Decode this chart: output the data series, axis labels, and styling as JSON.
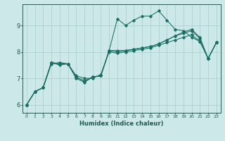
{
  "xlabel": "Humidex (Indice chaleur)",
  "bg_color": "#cce8e8",
  "grid_color": "#a8cccc",
  "line_color": "#1a6e64",
  "xlim": [
    -0.5,
    23.5
  ],
  "ylim": [
    5.7,
    9.8
  ],
  "yticks": [
    6,
    7,
    8,
    9
  ],
  "xticks": [
    0,
    1,
    2,
    3,
    4,
    5,
    6,
    7,
    8,
    9,
    10,
    11,
    12,
    13,
    14,
    15,
    16,
    17,
    18,
    19,
    20,
    21,
    22,
    23
  ],
  "series": [
    {
      "x": [
        0,
        1,
        2,
        3,
        4,
        5,
        6,
        7,
        8,
        9,
        10,
        11,
        12,
        13,
        14,
        15,
        16,
        17,
        18,
        19,
        20,
        21,
        22,
        23
      ],
      "y": [
        6.0,
        6.5,
        6.65,
        7.6,
        7.5,
        7.55,
        7.0,
        6.85,
        7.05,
        7.1,
        8.05,
        9.25,
        9.0,
        9.2,
        9.35,
        9.35,
        9.55,
        9.2,
        8.85,
        8.8,
        8.55,
        8.4,
        7.75,
        8.35
      ]
    },
    {
      "x": [
        0,
        1,
        2,
        3,
        4,
        5,
        6,
        7,
        8,
        9,
        10,
        11,
        12,
        13,
        14,
        15,
        16,
        17,
        18,
        19,
        20,
        21,
        22,
        23
      ],
      "y": [
        6.0,
        6.5,
        6.65,
        7.55,
        7.6,
        7.55,
        7.1,
        7.0,
        7.0,
        7.15,
        8.0,
        7.95,
        8.0,
        8.05,
        8.1,
        8.15,
        8.25,
        8.35,
        8.45,
        8.55,
        8.65,
        8.4,
        7.75,
        8.35
      ]
    },
    {
      "x": [
        0,
        1,
        2,
        3,
        4,
        5,
        6,
        7,
        8,
        9,
        10,
        11,
        12,
        13,
        14,
        15,
        16,
        17,
        18,
        19,
        20,
        21,
        22,
        23
      ],
      "y": [
        6.0,
        6.5,
        6.65,
        7.6,
        7.55,
        7.55,
        7.05,
        6.9,
        7.05,
        7.1,
        8.05,
        8.0,
        8.05,
        8.1,
        8.15,
        8.2,
        8.3,
        8.45,
        8.6,
        8.7,
        8.8,
        8.5,
        7.75,
        8.35
      ]
    },
    {
      "x": [
        0,
        1,
        2,
        3,
        4,
        5,
        6,
        7,
        8,
        9,
        10,
        11,
        12,
        13,
        14,
        15,
        16,
        17,
        18,
        19,
        20,
        21,
        22,
        23
      ],
      "y": [
        6.0,
        6.5,
        6.65,
        7.6,
        7.55,
        7.55,
        7.05,
        6.9,
        7.05,
        7.1,
        8.05,
        8.05,
        8.05,
        8.1,
        8.15,
        8.2,
        8.3,
        8.45,
        8.6,
        8.75,
        8.85,
        8.55,
        7.75,
        8.35
      ]
    }
  ]
}
